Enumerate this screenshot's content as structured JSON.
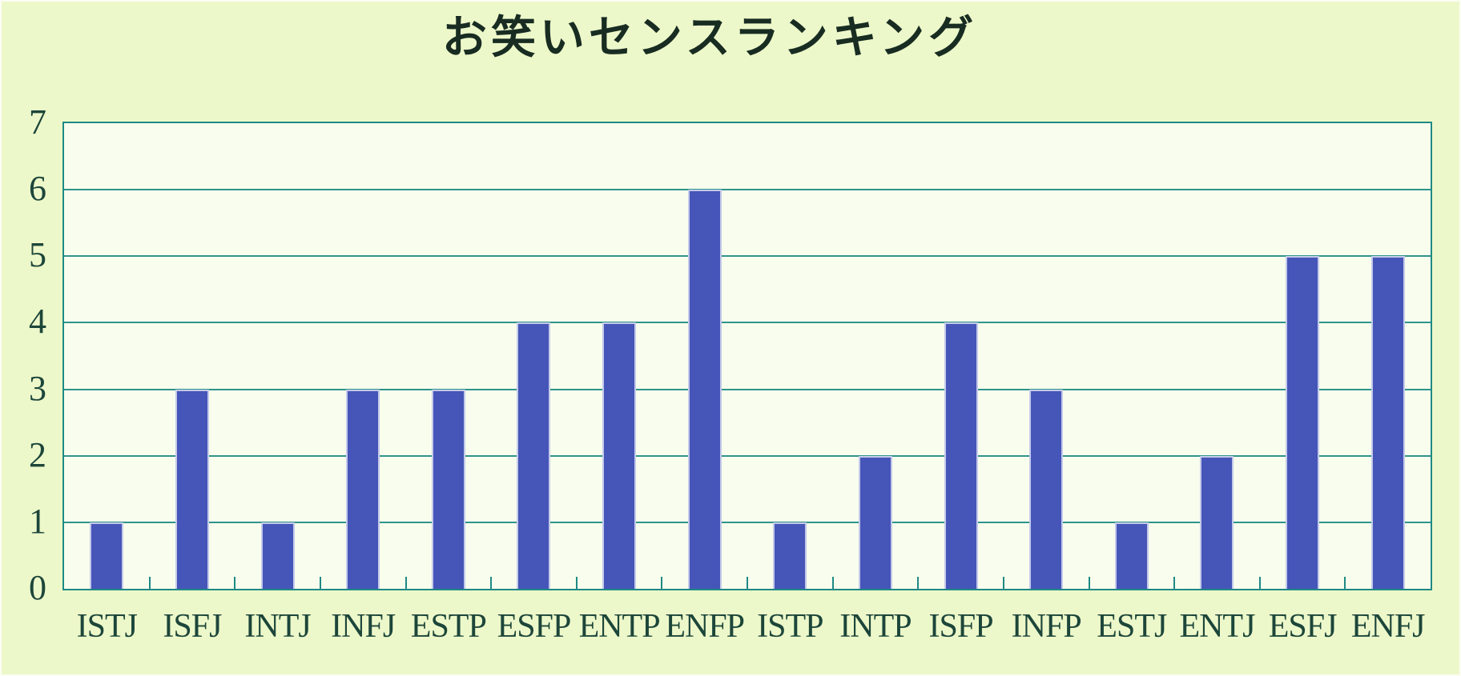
{
  "title": "お笑いセンスランキング",
  "colors": {
    "outer_background": "#edf8ca",
    "plot_background": "#f8fdee",
    "grid": "#2f948c",
    "axis_border": "#1e8a84",
    "bar_fill": "#4655b8",
    "bar_border": "#c4cae9",
    "title_text": "#182c22",
    "label_text": "#1d463a"
  },
  "chart_data": {
    "type": "bar",
    "title": "お笑いセンスランキング",
    "categories": [
      "ISTJ",
      "ISFJ",
      "INTJ",
      "INFJ",
      "ESTP",
      "ESFP",
      "ENTP",
      "ENFP",
      "ISTP",
      "INTP",
      "ISFP",
      "INFP",
      "ESTJ",
      "ENTJ",
      "ESFJ",
      "ENFJ"
    ],
    "values": [
      1,
      3,
      1,
      3,
      3,
      4,
      4,
      6,
      1,
      2,
      4,
      3,
      1,
      2,
      5,
      5
    ],
    "xlabel": "",
    "ylabel": "",
    "ylim": [
      0,
      7
    ],
    "yticks": [
      0,
      1,
      2,
      3,
      4,
      5,
      6,
      7
    ],
    "grid": "horizontal",
    "legend_position": "none",
    "bar_color": "#4655b8"
  }
}
